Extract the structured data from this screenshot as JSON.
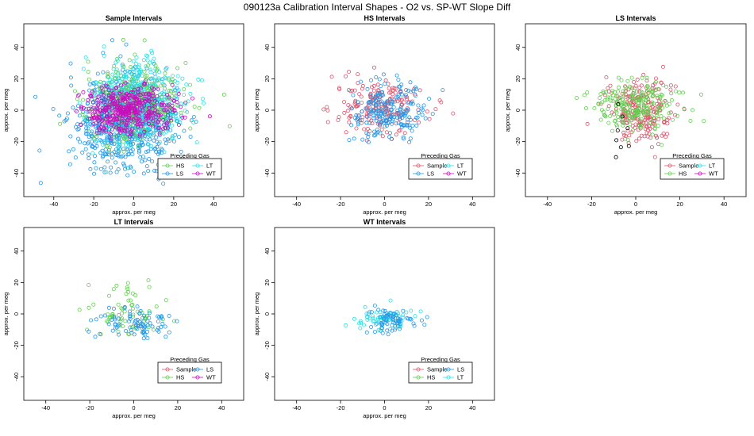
{
  "main_title": "090123a   Calibration Interval Shapes - O2 vs. SP-WT Slope Diff",
  "colors": {
    "Sample": "#df536b",
    "HS": "#61d04f",
    "LS": "#2297e6",
    "LT": "#28e2e5",
    "WT": "#cd0bbc",
    "other": "#000000"
  },
  "chart_data": [
    {
      "type": "scatter",
      "title": "Sample Intervals",
      "xlabel": "approx. per meg",
      "ylabel": "approx. per meg",
      "xlim": [
        -55,
        55
      ],
      "ylim": [
        -55,
        55
      ],
      "xticks": [
        -40,
        -20,
        0,
        20,
        40
      ],
      "yticks": [
        -40,
        -20,
        0,
        20,
        40
      ],
      "legend": {
        "title": "Preceding Gas",
        "entries": [
          "HS",
          "LT",
          "LS",
          "WT"
        ],
        "position": "bottom-right"
      },
      "series": [
        {
          "name": "LS",
          "n": 700,
          "cx": -5,
          "cy": -8,
          "sx": 17,
          "sy": 19
        },
        {
          "name": "LT",
          "n": 600,
          "cx": 2,
          "cy": 5,
          "sx": 14,
          "sy": 17
        },
        {
          "name": "HS",
          "n": 250,
          "cx": 0,
          "cy": 5,
          "sx": 18,
          "sy": 18
        },
        {
          "name": "WT",
          "n": 450,
          "cx": -3,
          "cy": 0,
          "sx": 14,
          "sy": 10
        }
      ]
    },
    {
      "type": "scatter",
      "title": "HS Intervals",
      "xlabel": "approx. per meg",
      "ylabel": "approx. per meg",
      "xlim": [
        -50,
        50
      ],
      "ylim": [
        -55,
        55
      ],
      "xticks": [
        -40,
        -20,
        0,
        20,
        40
      ],
      "yticks": [
        -40,
        -20,
        0,
        20,
        40
      ],
      "legend": {
        "title": "Preceding Gas",
        "entries": [
          "Sample",
          "LT",
          "LS",
          "WT"
        ],
        "position": "bottom-right"
      },
      "series": [
        {
          "name": "Sample",
          "n": 200,
          "cx": -2,
          "cy": 2,
          "sx": 13,
          "sy": 12
        },
        {
          "name": "LS",
          "n": 200,
          "cx": 2,
          "cy": 0,
          "sx": 11,
          "sy": 12
        }
      ]
    },
    {
      "type": "scatter",
      "title": "LS Intervals",
      "xlabel": "approx. per meg",
      "ylabel": "approx. per meg",
      "xlim": [
        -50,
        50
      ],
      "ylim": [
        -55,
        55
      ],
      "xticks": [
        -40,
        -20,
        0,
        20,
        40
      ],
      "yticks": [
        -40,
        -20,
        0,
        20,
        40
      ],
      "legend": {
        "title": "Preceding Gas",
        "entries": [
          "Sample",
          "LT",
          "HS",
          "WT"
        ],
        "position": "bottom-right"
      },
      "series": [
        {
          "name": "Sample",
          "n": 220,
          "cx": 2,
          "cy": 0,
          "sx": 10,
          "sy": 13
        },
        {
          "name": "HS",
          "n": 220,
          "cx": 0,
          "cy": 3,
          "sx": 12,
          "sy": 10
        },
        {
          "name": "other",
          "n": 8,
          "cx": -5,
          "cy": -12,
          "sx": 10,
          "sy": 8
        }
      ]
    },
    {
      "type": "scatter",
      "title": "LT Intervals",
      "xlabel": "approx. per meg",
      "ylabel": "approx. per meg",
      "xlim": [
        -50,
        50
      ],
      "ylim": [
        -55,
        55
      ],
      "xticks": [
        -40,
        -20,
        0,
        20,
        40
      ],
      "yticks": [
        -40,
        -20,
        0,
        20,
        40
      ],
      "legend": {
        "title": "Preceding Gas",
        "entries": [
          "Sample",
          "LS",
          "HS",
          "WT"
        ],
        "position": "bottom-right"
      },
      "series": [
        {
          "name": "HS",
          "n": 70,
          "cx": -5,
          "cy": 2,
          "sx": 13,
          "sy": 13
        },
        {
          "name": "LS",
          "n": 90,
          "cx": 0,
          "cy": -6,
          "sx": 11,
          "sy": 6
        }
      ]
    },
    {
      "type": "scatter",
      "title": "WT Intervals",
      "xlabel": "approx. per meg",
      "ylabel": "approx. per meg",
      "xlim": [
        -50,
        50
      ],
      "ylim": [
        -55,
        55
      ],
      "xticks": [
        -40,
        -20,
        0,
        20,
        40
      ],
      "yticks": [
        -40,
        -20,
        0,
        20,
        40
      ],
      "legend": {
        "title": "Preceding Gas",
        "entries": [
          "Sample",
          "LS",
          "HS",
          "LT"
        ],
        "position": "bottom-right"
      },
      "series": [
        {
          "name": "LT",
          "n": 70,
          "cx": 0,
          "cy": -3,
          "sx": 10,
          "sy": 6
        },
        {
          "name": "LS",
          "n": 70,
          "cx": 2,
          "cy": -5,
          "sx": 8,
          "sy": 5
        }
      ]
    }
  ]
}
